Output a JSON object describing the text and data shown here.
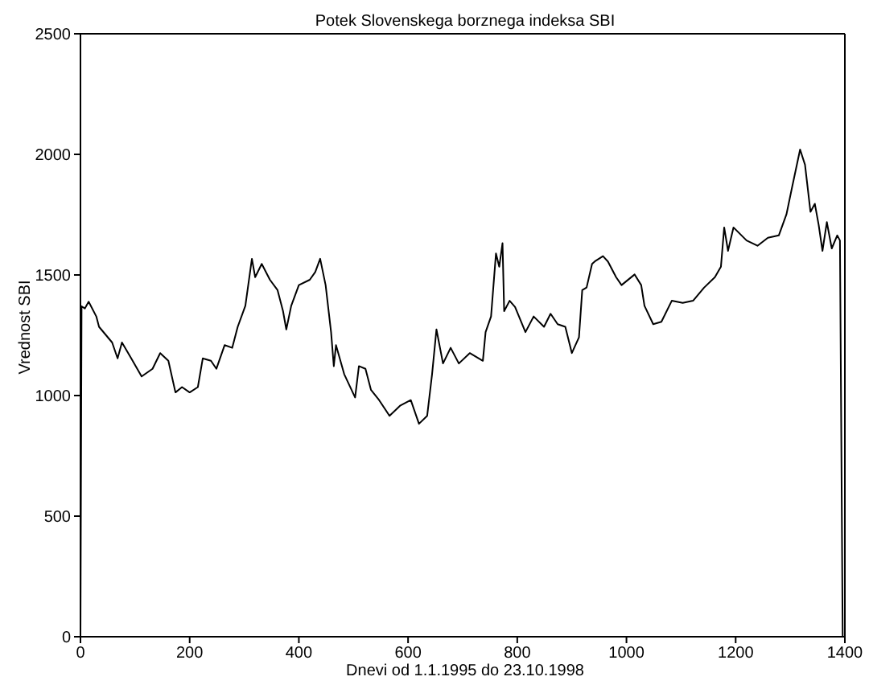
{
  "chart_data": {
    "type": "line",
    "title": "Potek Slovenskega borznega indeksa SBI",
    "xlabel": "Dnevi od 1.1.1995 do 23.10.1998",
    "ylabel": "Vrednost SBI",
    "color": "#000000",
    "marker": "none",
    "line_style": "solid",
    "x": [
      0,
      2,
      8,
      15,
      29,
      34,
      58,
      68,
      76,
      93,
      112,
      132,
      146,
      161,
      174,
      186,
      200,
      215,
      224,
      239,
      249,
      264,
      278,
      288,
      302,
      314,
      320,
      332,
      347,
      361,
      371,
      377,
      386,
      400,
      420,
      430,
      439,
      449,
      459,
      464,
      468,
      483,
      503,
      510,
      522,
      532,
      547,
      566,
      586,
      605,
      620,
      635,
      644,
      652,
      664,
      678,
      693,
      713,
      737,
      742,
      752,
      761,
      767,
      773,
      776,
      786,
      796,
      815,
      830,
      849,
      861,
      874,
      888,
      900,
      913,
      919,
      927,
      937,
      942,
      957,
      966,
      981,
      991,
      1015,
      1027,
      1033,
      1049,
      1064,
      1083,
      1103,
      1122,
      1142,
      1162,
      1173,
      1179,
      1186,
      1196,
      1220,
      1240,
      1259,
      1279,
      1293,
      1303,
      1318,
      1327,
      1337,
      1345,
      1352,
      1359,
      1367,
      1376,
      1386,
      1391,
      1396
    ],
    "values": [
      0,
      1370,
      1361,
      1389,
      1328,
      1285,
      1220,
      1154,
      1220,
      1154,
      1079,
      1111,
      1176,
      1144,
      1013,
      1035,
      1013,
      1035,
      1154,
      1144,
      1111,
      1209,
      1198,
      1285,
      1372,
      1567,
      1491,
      1546,
      1480,
      1437,
      1350,
      1274,
      1372,
      1458,
      1480,
      1512,
      1567,
      1458,
      1263,
      1122,
      1209,
      1089,
      992,
      1122,
      1111,
      1024,
      981,
      916,
      959,
      981,
      883,
      916,
      1089,
      1274,
      1133,
      1198,
      1133,
      1176,
      1144,
      1263,
      1328,
      1589,
      1534,
      1632,
      1350,
      1393,
      1367,
      1263,
      1328,
      1285,
      1339,
      1296,
      1285,
      1176,
      1241,
      1437,
      1448,
      1546,
      1556,
      1578,
      1556,
      1491,
      1458,
      1502,
      1458,
      1372,
      1296,
      1306,
      1393,
      1384,
      1393,
      1447,
      1491,
      1534,
      1697,
      1600,
      1697,
      1643,
      1621,
      1654,
      1664,
      1751,
      1860,
      2020,
      1957,
      1762,
      1795,
      1708,
      1600,
      1719,
      1610,
      1664,
      1643,
      0
    ],
    "xlim": [
      0,
      1400
    ],
    "xticks": [
      0,
      200,
      400,
      600,
      800,
      1000,
      1200,
      1400
    ],
    "ylim": [
      0,
      2500
    ],
    "yticks": [
      0,
      500,
      1000,
      1500,
      2000,
      2500
    ],
    "grid": false,
    "legend": false
  }
}
